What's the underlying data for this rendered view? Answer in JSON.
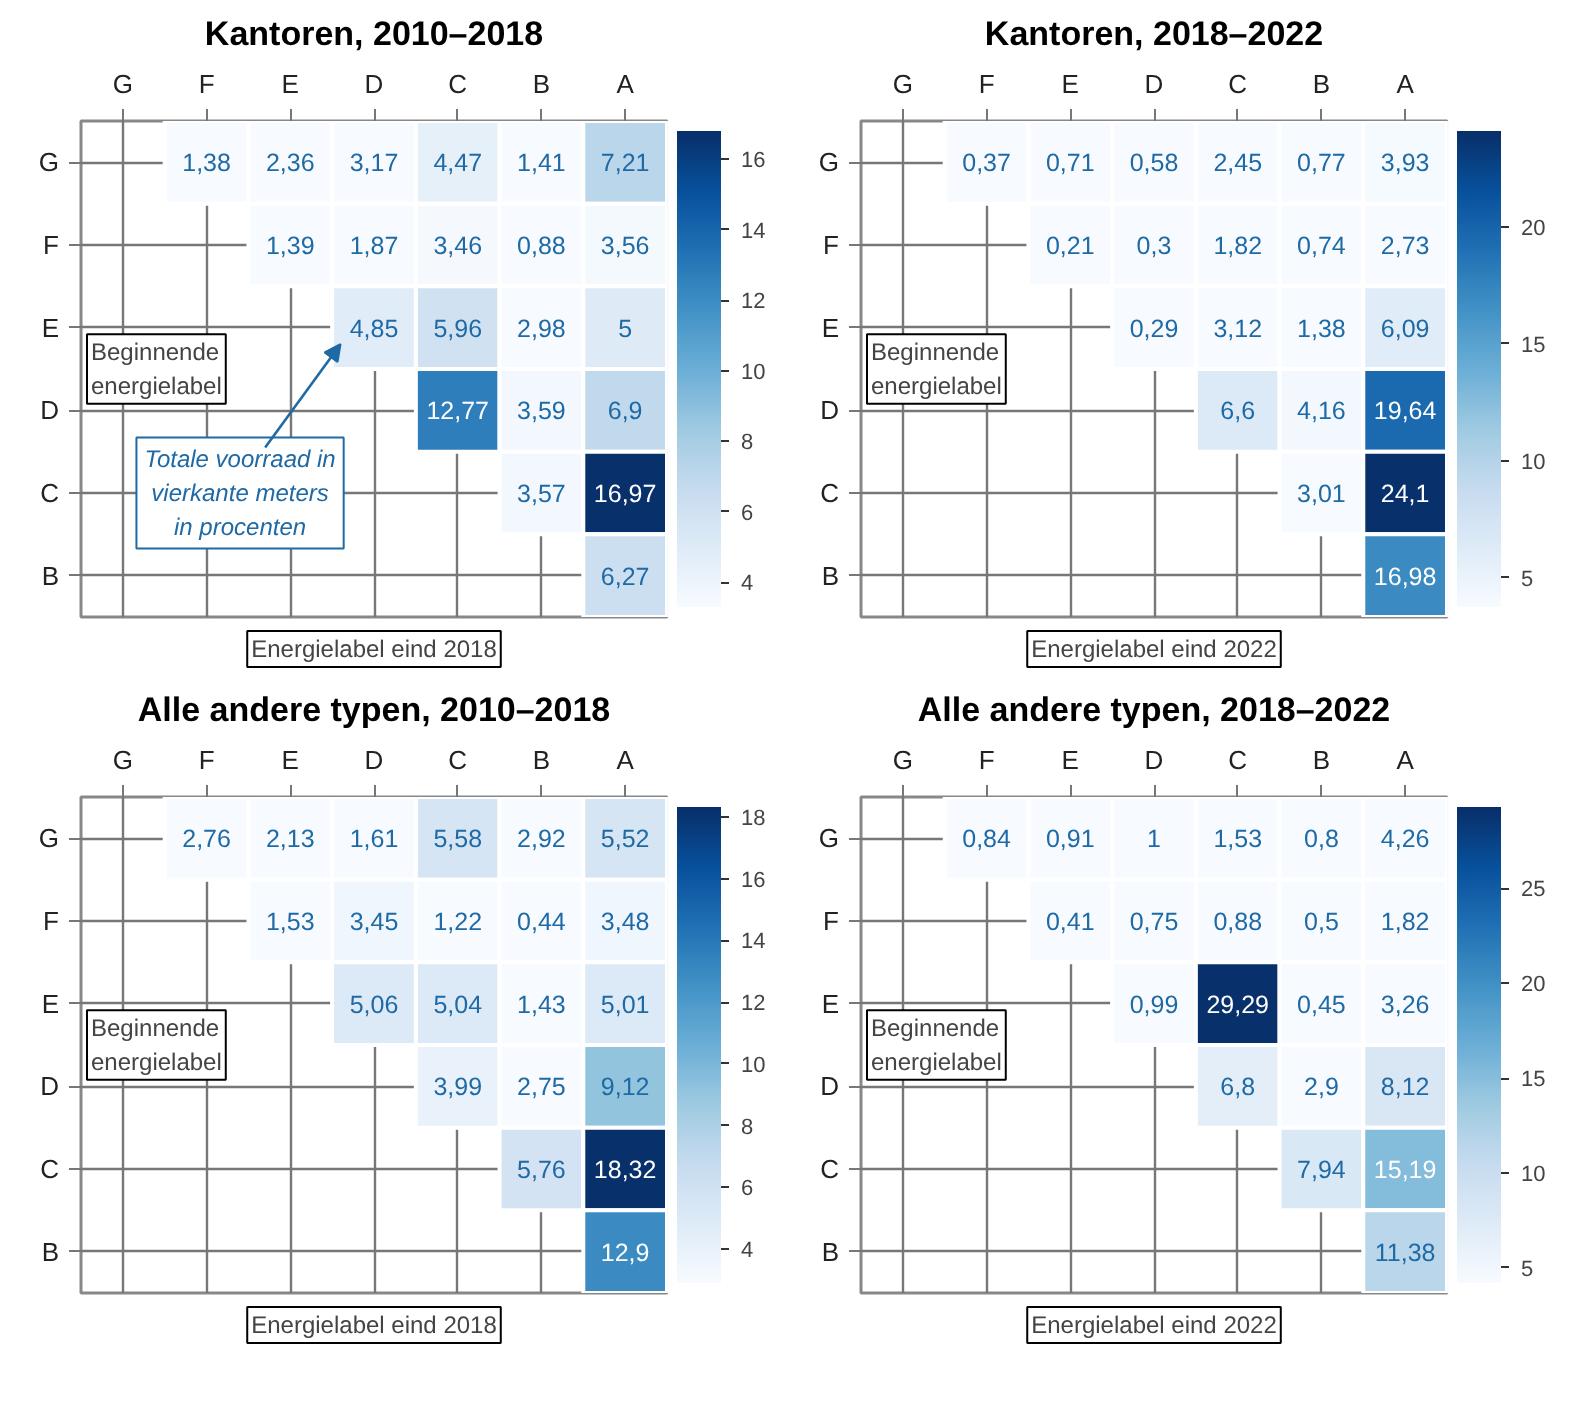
{
  "chart_data": [
    {
      "type": "heatmap",
      "title": "Kantoren, 2010–2018",
      "xlabel": "Energielabel eind 2018",
      "ylabel": "Beginnende energielabel",
      "categories": [
        "G",
        "F",
        "E",
        "D",
        "C",
        "B",
        "A"
      ],
      "y_categories": [
        "G",
        "F",
        "E",
        "D",
        "C",
        "B"
      ],
      "grid": true,
      "clim": [
        3.3,
        16.8
      ],
      "cticks": [
        4,
        6,
        8,
        10,
        12,
        14,
        16
      ],
      "cells": [
        [
          null,
          1.38,
          2.36,
          3.17,
          4.47,
          1.41,
          7.21
        ],
        [
          null,
          null,
          1.39,
          1.87,
          3.46,
          0.88,
          3.56
        ],
        [
          null,
          null,
          null,
          4.85,
          5.96,
          2.98,
          5
        ],
        [
          null,
          null,
          null,
          null,
          12.77,
          3.59,
          6.9
        ],
        [
          null,
          null,
          null,
          null,
          null,
          3.57,
          16.97
        ],
        [
          null,
          null,
          null,
          null,
          null,
          null,
          6.27
        ]
      ],
      "cell_labels": [
        [
          null,
          "1,38",
          "2,36",
          "3,17",
          "4,47",
          "1,41",
          "7,21"
        ],
        [
          null,
          null,
          "1,39",
          "1,87",
          "3,46",
          "0,88",
          "3,56"
        ],
        [
          null,
          null,
          null,
          "4,85",
          "5,96",
          "2,98",
          "5"
        ],
        [
          null,
          null,
          null,
          null,
          "12,77",
          "3,59",
          "6,9"
        ],
        [
          null,
          null,
          null,
          null,
          null,
          "3,57",
          "16,97"
        ],
        [
          null,
          null,
          null,
          null,
          null,
          null,
          "6,27"
        ]
      ],
      "annotations": [
        "Totale voorraad in vierkante meters in procenten"
      ]
    },
    {
      "type": "heatmap",
      "title": "Kantoren, 2018–2022",
      "xlabel": "Energielabel eind 2022",
      "ylabel": "Beginnende energielabel",
      "categories": [
        "G",
        "F",
        "E",
        "D",
        "C",
        "B",
        "A"
      ],
      "y_categories": [
        "G",
        "F",
        "E",
        "D",
        "C",
        "B"
      ],
      "grid": true,
      "clim": [
        3.75,
        24.1
      ],
      "cticks": [
        5,
        10,
        15,
        20
      ],
      "cells": [
        [
          null,
          0.37,
          0.71,
          0.58,
          2.45,
          0.77,
          3.93
        ],
        [
          null,
          null,
          0.21,
          0.3,
          1.82,
          0.74,
          2.73
        ],
        [
          null,
          null,
          null,
          0.29,
          3.12,
          1.38,
          6.09
        ],
        [
          null,
          null,
          null,
          null,
          6.6,
          4.16,
          19.64
        ],
        [
          null,
          null,
          null,
          null,
          null,
          3.01,
          24.1
        ],
        [
          null,
          null,
          null,
          null,
          null,
          null,
          16.98
        ]
      ],
      "cell_labels": [
        [
          null,
          "0,37",
          "0,71",
          "0,58",
          "2,45",
          "0,77",
          "3,93"
        ],
        [
          null,
          null,
          "0,21",
          "0,3",
          "1,82",
          "0,74",
          "2,73"
        ],
        [
          null,
          null,
          null,
          "0,29",
          "3,12",
          "1,38",
          "6,09"
        ],
        [
          null,
          null,
          null,
          null,
          "6,6",
          "4,16",
          "19,64"
        ],
        [
          null,
          null,
          null,
          null,
          null,
          "3,01",
          "24,1"
        ],
        [
          null,
          null,
          null,
          null,
          null,
          null,
          "16,98"
        ]
      ]
    },
    {
      "type": "heatmap",
      "title": "Alle andere typen, 2010–2018",
      "xlabel": "Energielabel eind 2018",
      "ylabel": "Beginnende energielabel",
      "categories": [
        "G",
        "F",
        "E",
        "D",
        "C",
        "B",
        "A"
      ],
      "y_categories": [
        "G",
        "F",
        "E",
        "D",
        "C",
        "B"
      ],
      "grid": true,
      "clim": [
        2.9,
        18.32
      ],
      "cticks": [
        4,
        6,
        8,
        10,
        12,
        14,
        16,
        18
      ],
      "cells": [
        [
          null,
          2.76,
          2.13,
          1.61,
          5.58,
          2.92,
          5.52
        ],
        [
          null,
          null,
          1.53,
          3.45,
          1.22,
          0.44,
          3.48
        ],
        [
          null,
          null,
          null,
          5.06,
          5.04,
          1.43,
          5.01
        ],
        [
          null,
          null,
          null,
          null,
          3.99,
          2.75,
          9.12
        ],
        [
          null,
          null,
          null,
          null,
          null,
          5.76,
          18.32
        ],
        [
          null,
          null,
          null,
          null,
          null,
          null,
          12.9
        ]
      ],
      "cell_labels": [
        [
          null,
          "2,76",
          "2,13",
          "1,61",
          "5,58",
          "2,92",
          "5,52"
        ],
        [
          null,
          null,
          "1,53",
          "3,45",
          "1,22",
          "0,44",
          "3,48"
        ],
        [
          null,
          null,
          null,
          "5,06",
          "5,04",
          "1,43",
          "5,01"
        ],
        [
          null,
          null,
          null,
          null,
          "3,99",
          "2,75",
          "9,12"
        ],
        [
          null,
          null,
          null,
          null,
          null,
          "5,76",
          "18,32"
        ],
        [
          null,
          null,
          null,
          null,
          null,
          null,
          "12,9"
        ]
      ]
    },
    {
      "type": "heatmap",
      "title": "Alle andere typen, 2018–2022",
      "xlabel": "Energielabel eind 2022",
      "ylabel": "Beginnende energielabel",
      "categories": [
        "G",
        "F",
        "E",
        "D",
        "C",
        "B",
        "A"
      ],
      "y_categories": [
        "G",
        "F",
        "E",
        "D",
        "C",
        "B"
      ],
      "grid": true,
      "clim": [
        4.2,
        29.29
      ],
      "cticks": [
        5,
        10,
        15,
        20,
        25
      ],
      "cells": [
        [
          null,
          0.84,
          0.91,
          1,
          1.53,
          0.8,
          4.26
        ],
        [
          null,
          null,
          0.41,
          0.75,
          0.88,
          0.5,
          1.82
        ],
        [
          null,
          null,
          null,
          0.99,
          29.29,
          0.45,
          3.26
        ],
        [
          null,
          null,
          null,
          null,
          6.8,
          2.9,
          8.12
        ],
        [
          null,
          null,
          null,
          null,
          null,
          7.94,
          15.19
        ],
        [
          null,
          null,
          null,
          null,
          null,
          null,
          11.38
        ]
      ],
      "cell_labels": [
        [
          null,
          "0,84",
          "0,91",
          "1",
          "1,53",
          "0,8",
          "4,26"
        ],
        [
          null,
          null,
          "0,41",
          "0,75",
          "0,88",
          "0,5",
          "1,82"
        ],
        [
          null,
          null,
          null,
          "0,99",
          "29,29",
          "0,45",
          "3,26"
        ],
        [
          null,
          null,
          null,
          null,
          "6,8",
          "2,9",
          "8,12"
        ],
        [
          null,
          null,
          null,
          null,
          null,
          "7,94",
          "15,19"
        ],
        [
          null,
          null,
          null,
          null,
          null,
          null,
          "11,38"
        ]
      ]
    }
  ]
}
